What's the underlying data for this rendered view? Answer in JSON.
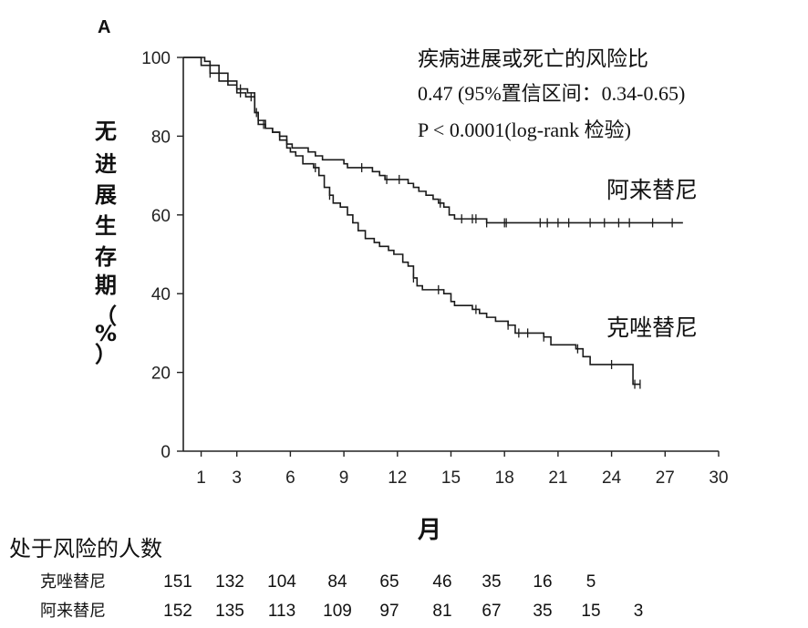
{
  "panel_label": "A",
  "chart_data": {
    "type": "line",
    "subtype": "kaplan-meier",
    "xlabel": "月",
    "ylabel_chars": [
      "无",
      "进",
      "展",
      "生",
      "存",
      "期",
      "（",
      "%",
      "）"
    ],
    "xlim": [
      0,
      30
    ],
    "ylim": [
      0,
      100
    ],
    "xticks": [
      "1",
      "3",
      "6",
      "9",
      "12",
      "15",
      "18",
      "21",
      "24",
      "27",
      "30"
    ],
    "xtick_values": [
      1,
      3,
      6,
      9,
      12,
      15,
      18,
      21,
      24,
      27,
      30
    ],
    "yticks": [
      "0",
      "20",
      "40",
      "60",
      "80",
      "100"
    ],
    "ytick_values": [
      0,
      20,
      40,
      60,
      80,
      100
    ],
    "grid": false,
    "annotation": {
      "line1": "疾病进展或死亡的风险比",
      "line2": "0.47 (95%置信区间：0.34-0.65)",
      "line3": "P < 0.0001(log-rank 检验)"
    },
    "series": [
      {
        "name": "阿来替尼",
        "color": "#1a1a1a",
        "points": [
          [
            0,
            100
          ],
          [
            1.2,
            99
          ],
          [
            1.5,
            98
          ],
          [
            2,
            96
          ],
          [
            2.5,
            94
          ],
          [
            3,
            92
          ],
          [
            3.6,
            91
          ],
          [
            4,
            86
          ],
          [
            4.2,
            84
          ],
          [
            4.6,
            82
          ],
          [
            5,
            81
          ],
          [
            5.4,
            80
          ],
          [
            5.8,
            78
          ],
          [
            6.1,
            77
          ],
          [
            7,
            76
          ],
          [
            7.4,
            75
          ],
          [
            7.8,
            74
          ],
          [
            9,
            73
          ],
          [
            9.2,
            72
          ],
          [
            10.6,
            71
          ],
          [
            11,
            70
          ],
          [
            11.3,
            69
          ],
          [
            12.6,
            68
          ],
          [
            12.9,
            67
          ],
          [
            13.2,
            66
          ],
          [
            13.6,
            65
          ],
          [
            14,
            64
          ],
          [
            14.3,
            63
          ],
          [
            14.6,
            62
          ],
          [
            14.9,
            60
          ],
          [
            15.2,
            59
          ],
          [
            17,
            58
          ],
          [
            18,
            58
          ],
          [
            28,
            58
          ]
        ],
        "censor_x": [
          1.5,
          3.2,
          4.1,
          10,
          11.4,
          12.1,
          14.4,
          15.6,
          16.2,
          16.4,
          17,
          18,
          18.1,
          20,
          20.4,
          21,
          21.6,
          22.8,
          23.6,
          24.4,
          25,
          26.3,
          27.4
        ]
      },
      {
        "name": "克唑替尼",
        "color": "#1a1a1a",
        "points": [
          [
            0,
            100
          ],
          [
            1,
            98
          ],
          [
            1.5,
            96
          ],
          [
            2,
            94
          ],
          [
            2.5,
            93
          ],
          [
            3,
            91
          ],
          [
            3.5,
            90
          ],
          [
            4,
            86
          ],
          [
            4.2,
            83
          ],
          [
            4.6,
            82
          ],
          [
            5,
            81
          ],
          [
            5.4,
            79
          ],
          [
            5.8,
            77
          ],
          [
            6,
            76
          ],
          [
            6.3,
            75
          ],
          [
            6.7,
            73
          ],
          [
            7.3,
            72
          ],
          [
            7.6,
            70
          ],
          [
            7.9,
            67
          ],
          [
            8.2,
            65
          ],
          [
            8.4,
            63
          ],
          [
            8.8,
            62
          ],
          [
            9.2,
            60
          ],
          [
            9.5,
            58
          ],
          [
            9.8,
            56
          ],
          [
            10.2,
            54
          ],
          [
            10.7,
            53
          ],
          [
            11,
            52
          ],
          [
            11.5,
            51
          ],
          [
            11.8,
            50
          ],
          [
            12.3,
            48
          ],
          [
            12.6,
            47
          ],
          [
            12.9,
            44
          ],
          [
            13.1,
            42
          ],
          [
            13.4,
            41
          ],
          [
            14.6,
            40
          ],
          [
            15,
            38
          ],
          [
            15.2,
            37
          ],
          [
            16.2,
            36
          ],
          [
            16.6,
            35
          ],
          [
            17,
            34
          ],
          [
            17.5,
            33
          ],
          [
            18.2,
            32
          ],
          [
            18.6,
            30
          ],
          [
            20.2,
            29
          ],
          [
            20.6,
            27
          ],
          [
            22,
            26
          ],
          [
            22.4,
            24
          ],
          [
            22.8,
            22
          ],
          [
            24.2,
            22
          ],
          [
            25.2,
            17
          ],
          [
            25.6,
            17
          ]
        ],
        "censor_x": [
          1.5,
          3.2,
          3.8,
          4.5,
          7.4,
          8.2,
          12.9,
          14.3,
          16.4,
          18.2,
          18.8,
          19.3,
          20.2,
          22.1,
          24,
          25.3,
          25.6
        ]
      }
    ]
  },
  "risk_table": {
    "title": "处于风险的人数",
    "rows": [
      {
        "label": "克唑替尼",
        "values": [
          "151",
          "132",
          "104",
          "84",
          "65",
          "46",
          "35",
          "16",
          "5",
          ""
        ]
      },
      {
        "label": "阿来替尼",
        "values": [
          "152",
          "135",
          "113",
          "109",
          "97",
          "81",
          "67",
          "35",
          "15",
          "3"
        ]
      }
    ]
  }
}
